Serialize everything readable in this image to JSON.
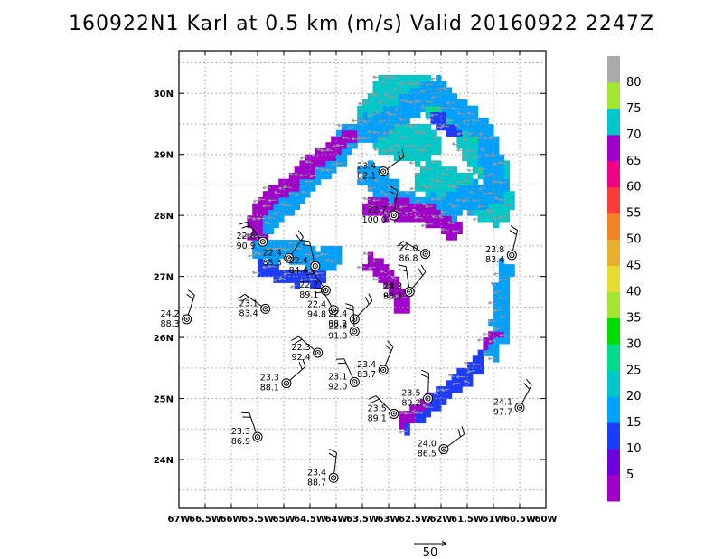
{
  "title": "160922N1 Karl at 0.5 km (m/s) Valid 20160922 2247Z",
  "lon_labels": [
    "67W",
    "66.5W",
    "66W",
    "65.5W",
    "65W",
    "64.5W",
    "64W",
    "63.5W",
    "63W",
    "62.5W",
    "62W",
    "61.5W",
    "61W",
    "60.5W",
    "60W"
  ],
  "lat_labels": [
    "30N",
    "29N",
    "28N",
    "27N",
    "26N",
    "25N",
    "24N"
  ],
  "map_extent": {
    "lon_min": -67.0,
    "lon_max": -60.0,
    "lat_min": 23.2,
    "lat_max": 30.7
  },
  "colorbar": {
    "labels": [
      "5",
      "10",
      "15",
      "20",
      "25",
      "30",
      "35",
      "40",
      "45",
      "50",
      "55",
      "60",
      "65",
      "70",
      "75",
      "80"
    ],
    "colors": [
      "#a000c8",
      "#6e00dc",
      "#1e3cff",
      "#00a0ff",
      "#00c8c8",
      "#00dc8c",
      "#00dc00",
      "#a0e632",
      "#e6dc32",
      "#e6af2d",
      "#f08228",
      "#fa3c3c",
      "#f00082",
      "#a000c8",
      "#00c8c8",
      "#a0e632",
      "#aaaaaa"
    ]
  },
  "reference_vector": {
    "label": "50",
    "magnitude_ms": 50
  },
  "colors": {
    "grid": "#999999",
    "vector": "#999999",
    "station": "#000000"
  },
  "stations": [
    {
      "lon": -63.1,
      "lat": 28.72,
      "t": "23.4",
      "p": "82.1"
    },
    {
      "lon": -62.9,
      "lat": 28.0,
      "t": "22.7",
      "p": "100.0"
    },
    {
      "lon": -65.4,
      "lat": 27.57,
      "t": "22.8",
      "p": "90.9"
    },
    {
      "lon": -64.9,
      "lat": 27.3,
      "t": "22.4",
      "p": "85.3"
    },
    {
      "lon": -64.4,
      "lat": 27.17,
      "t": "22.4",
      "p": "84.4"
    },
    {
      "lon": -62.3,
      "lat": 27.37,
      "t": "24.0",
      "p": "86.8"
    },
    {
      "lon": -60.65,
      "lat": 27.35,
      "t": "23.8",
      "p": "83.4"
    },
    {
      "lon": -64.2,
      "lat": 26.77,
      "t": "22.7",
      "p": "89.1"
    },
    {
      "lon": -62.6,
      "lat": 26.75,
      "t": "23.3",
      "p": "88.7"
    },
    {
      "lon": -62.6,
      "lat": 26.75,
      "t": "24.2",
      "p": "90.3"
    },
    {
      "lon": -65.35,
      "lat": 26.47,
      "t": "23.1",
      "p": "83.4"
    },
    {
      "lon": -66.85,
      "lat": 26.3,
      "t": "24.2",
      "p": "88.3"
    },
    {
      "lon": -64.05,
      "lat": 26.45,
      "t": "22.4",
      "p": "94.8"
    },
    {
      "lon": -63.65,
      "lat": 26.3,
      "t": "22.4",
      "p": "88.2"
    },
    {
      "lon": -63.65,
      "lat": 26.1,
      "t": "22.8",
      "p": "91.0"
    },
    {
      "lon": -64.35,
      "lat": 25.75,
      "t": "22.3",
      "p": "92.4"
    },
    {
      "lon": -63.1,
      "lat": 25.47,
      "t": "23.4",
      "p": "83.7"
    },
    {
      "lon": -63.65,
      "lat": 25.27,
      "t": "23.1",
      "p": "92.0"
    },
    {
      "lon": -64.95,
      "lat": 25.25,
      "t": "23.3",
      "p": "88.1"
    },
    {
      "lon": -62.25,
      "lat": 25.0,
      "t": "23.5",
      "p": "89.2"
    },
    {
      "lon": -62.9,
      "lat": 24.75,
      "t": "23.5",
      "p": "89.1"
    },
    {
      "lon": -60.5,
      "lat": 24.85,
      "t": "24.1",
      "p": "97.7"
    },
    {
      "lon": -65.5,
      "lat": 24.37,
      "t": "23.3",
      "p": "86.9"
    },
    {
      "lon": -61.95,
      "lat": 24.17,
      "t": "24.0",
      "p": "86.5"
    },
    {
      "lon": -64.05,
      "lat": 23.7,
      "t": "23.4",
      "p": "88.7"
    }
  ]
}
